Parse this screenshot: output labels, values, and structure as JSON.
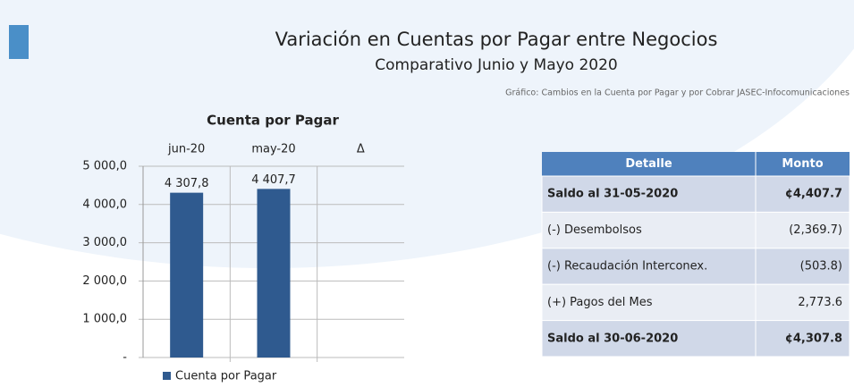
{
  "header": {
    "title": "Variación en Cuentas por Pagar entre Negocios",
    "subtitle": "Comparativo Junio y Mayo 2020",
    "source": "Gráfico: Cambios en la Cuenta por Pagar y por Cobrar JASEC-Infocomunicaciones"
  },
  "chart_data": {
    "type": "bar",
    "title": "Cuenta por Pagar",
    "categories": [
      "jun-20",
      "may-20",
      "Δ"
    ],
    "series": [
      {
        "name": "Cuenta por Pagar",
        "color": "#2f5a8f",
        "values": [
          4307.8,
          4407.7,
          null
        ],
        "value_labels": [
          "4 307,8",
          "4 407,7",
          null
        ]
      }
    ],
    "ylim": [
      0,
      5000
    ],
    "yticks": [
      {
        "value": 0,
        "label": "-"
      },
      {
        "value": 1000,
        "label": "1 000,0"
      },
      {
        "value": 2000,
        "label": "2 000,0"
      },
      {
        "value": 3000,
        "label": "3 000,0"
      },
      {
        "value": 4000,
        "label": "4 000,0"
      },
      {
        "value": 5000,
        "label": "5 000,0"
      }
    ],
    "grid": true,
    "legend": "bottom-left"
  },
  "table": {
    "header": [
      "Detalle",
      "Monto"
    ],
    "rows": [
      [
        "Saldo al 31-05-2020",
        "¢4,407.7"
      ],
      [
        "(-) Desembolsos",
        "(2,369.7)"
      ],
      [
        "(-) Recaudación Interconex.",
        "(503.8)"
      ],
      [
        "(+) Pagos del Mes",
        "2,773.6"
      ],
      [
        "Saldo al 30-06-2020",
        "¢4,307.8"
      ]
    ]
  }
}
